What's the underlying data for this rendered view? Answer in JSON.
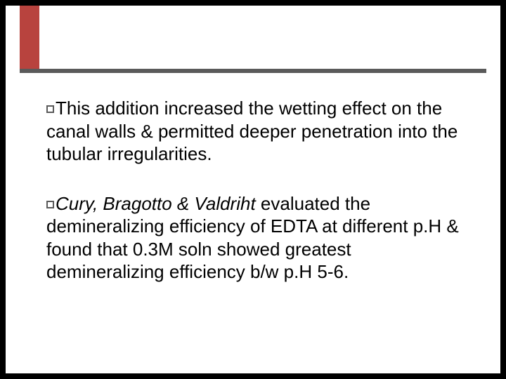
{
  "slide": {
    "background_color": "#ffffff",
    "outer_background_color": "#000000",
    "accent_color": "#b8433e",
    "rule_color": "#5a5a5a",
    "body_fontsize": 26,
    "para1": {
      "text": "This addition increased the wetting effect on the canal walls & permitted deeper penetration into the tubular irregularities."
    },
    "para2": {
      "italic_prefix": "Cury, Bragotto & Valdriht",
      "rest": " evaluated the demineralizing efficiency of EDTA at different p.H & found that 0.3M soln showed greatest demineralizing efficiency b/w p.H 5-6."
    }
  }
}
